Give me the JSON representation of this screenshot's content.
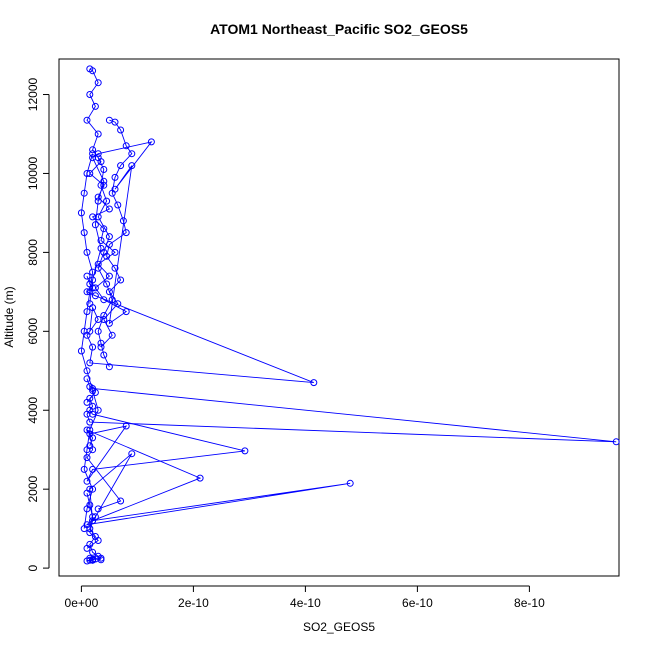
{
  "chart_data": {
    "type": "line",
    "title": "ATOM1 Northeast_Pacific SO2_GEOS5",
    "xlabel": "SO2_GEOS5",
    "ylabel": "Altitude (m)",
    "xlim": [
      -4e-11,
      9.6e-10
    ],
    "ylim": [
      -200,
      12900
    ],
    "x_ticks": [
      {
        "value": 0,
        "label": "0e+00"
      },
      {
        "value": 2e-10,
        "label": "2e-10"
      },
      {
        "value": 4e-10,
        "label": "4e-10"
      },
      {
        "value": 6e-10,
        "label": "6e-10"
      },
      {
        "value": 8e-10,
        "label": "8e-10"
      }
    ],
    "y_ticks": [
      {
        "value": 0,
        "label": "0"
      },
      {
        "value": 2000,
        "label": "2000"
      },
      {
        "value": 4000,
        "label": "4000"
      },
      {
        "value": 6000,
        "label": "6000"
      },
      {
        "value": 8000,
        "label": "8000"
      },
      {
        "value": 10000,
        "label": "10000"
      },
      {
        "value": 12000,
        "label": "12000"
      }
    ],
    "grid": false,
    "legend": "none",
    "series_color": "#0000ff",
    "series": [
      {
        "x": [
          1.5e-11,
          2e-11,
          3e-11,
          1.5e-11,
          2.5e-11,
          1e-11,
          3e-11,
          2e-11,
          3.5e-11,
          1.5e-11,
          4e-11,
          3e-11,
          5e-11,
          2e-11,
          4e-11,
          3.5e-11,
          6e-11,
          3e-11,
          5e-11,
          2.5e-11,
          4e-11,
          8e-11,
          5e-11,
          9e-11,
          6e-11,
          1.25e-10,
          3e-11,
          2e-11,
          4e-11,
          3e-11,
          2.5e-11,
          3.5e-11,
          2e-11,
          1.5e-11
        ],
        "y": [
          12650,
          12600,
          12300,
          12000,
          11700,
          11350,
          11000,
          10600,
          10300,
          10000,
          9700,
          9400,
          9100,
          8900,
          8600,
          8300,
          8000,
          7700,
          7400,
          7100,
          6800,
          6500,
          6200,
          10200,
          9600,
          10800,
          10500,
          10400,
          9800,
          9300,
          8700,
          8100,
          7300,
          6700
        ]
      },
      {
        "x": [
          1e-11,
          1.5e-11,
          2e-11,
          1e-11,
          2.5e-11,
          4.15e-10,
          1.5e-11,
          2e-11,
          1e-11,
          3e-11,
          2e-11,
          1.5e-11
        ],
        "y": [
          7400,
          7200,
          7100,
          7000,
          6900,
          4700,
          5200,
          5600,
          5900,
          6300,
          6600,
          6000
        ]
      },
      {
        "x": [
          1e-11,
          1.5e-11,
          2e-11,
          9.55e-10,
          1.5e-11,
          1e-11,
          2e-11,
          1.5e-11,
          2.5e-11,
          1e-11
        ],
        "y": [
          4800,
          4600,
          4550,
          3200,
          3700,
          3900,
          4100,
          4300,
          4450,
          4200
        ]
      },
      {
        "x": [
          1.5e-11,
          2e-11,
          2.92e-10,
          2e-11,
          1e-11,
          8e-11,
          1.5e-11,
          2e-11,
          1e-11,
          7e-11,
          3e-11
        ],
        "y": [
          4000,
          3900,
          2970,
          2500,
          2200,
          3600,
          3400,
          3000,
          2800,
          1700,
          1500
        ]
      },
      {
        "x": [
          1.5e-11,
          2e-11,
          1e-11,
          2.12e-10,
          2e-11,
          1.5e-11,
          9e-11,
          2.5e-11,
          1e-11,
          4.8e-10,
          2e-11,
          1.5e-11,
          3e-11,
          1e-11
        ],
        "y": [
          3100,
          3300,
          3500,
          2280,
          1200,
          2000,
          2900,
          1300,
          1100,
          2150,
          1200,
          900,
          700,
          500
        ]
      },
      {
        "x": [
          1e-11,
          1.5e-11,
          2e-11,
          1.5e-11,
          2.5e-11,
          1.5e-11,
          2e-11,
          3e-11,
          3.5e-11,
          2e-11,
          1.5e-11,
          1e-11,
          2e-11,
          2.5e-11,
          3.5e-11,
          1.5e-11,
          2e-11
        ],
        "y": [
          1900,
          1600,
          1300,
          1000,
          800,
          600,
          400,
          300,
          250,
          220,
          200,
          180,
          200,
          230,
          210,
          250,
          200
        ]
      },
      {
        "x": [
          5e-11,
          6e-11,
          7e-11,
          8e-11,
          9e-11,
          7e-11,
          6e-11,
          5.5e-11,
          6.5e-11,
          7.5e-11,
          8e-11,
          5e-11,
          4.5e-11,
          6e-11,
          7e-11,
          5e-11,
          6.5e-11,
          4e-11,
          5.5e-11,
          3.5e-11
        ],
        "y": [
          11350,
          11300,
          11100,
          10700,
          10500,
          10200,
          9900,
          9500,
          9200,
          8800,
          8500,
          8200,
          7900,
          7600,
          7300,
          7000,
          6700,
          6300,
          5900,
          5600
        ]
      },
      {
        "x": [
          2e-11,
          1e-11,
          5e-12,
          0.0,
          5e-12,
          1e-11,
          2e-11,
          1.5e-11,
          1e-11,
          5e-12,
          0.0,
          1e-11,
          2e-11,
          3e-11,
          1.5e-11,
          1e-11,
          5e-12,
          2e-11,
          1e-11,
          5e-12
        ],
        "y": [
          10500,
          10000,
          9500,
          9000,
          8500,
          8000,
          7500,
          7000,
          6500,
          6000,
          5500,
          5000,
          4500,
          4000,
          3500,
          3000,
          2500,
          2000,
          1500,
          1000
        ]
      },
      {
        "x": [
          3e-11,
          4e-11,
          3.5e-11,
          4.5e-11,
          3e-11,
          5e-11,
          4e-11,
          3e-11,
          4.5e-11,
          5.5e-11,
          4e-11,
          3e-11,
          3.5e-11,
          4e-11,
          5e-11
        ],
        "y": [
          10400,
          10100,
          9700,
          9300,
          8900,
          8400,
          8000,
          7600,
          7200,
          6800,
          6400,
          6000,
          5700,
          5400,
          5100
        ]
      }
    ]
  }
}
